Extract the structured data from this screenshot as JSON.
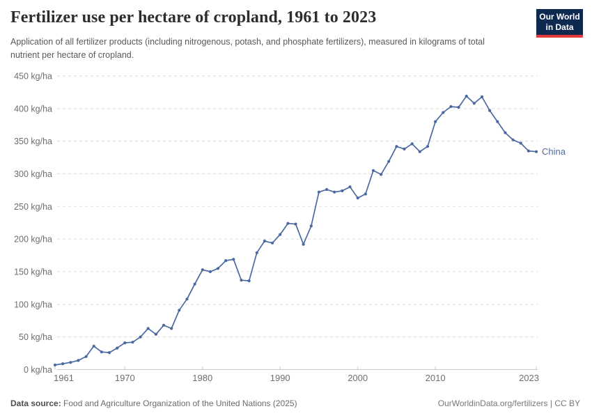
{
  "header": {
    "title": "Fertilizer use per hectare of cropland, 1961 to 2023",
    "subtitle": "Application of all fertilizer products (including nitrogenous, potash, and phosphate fertilizers), measured in kilograms of total nutrient per hectare of cropland.",
    "logo": {
      "line1": "Our World",
      "line2": "in Data"
    }
  },
  "chart_data": {
    "type": "line",
    "title": "Fertilizer use per hectare of cropland, 1961 to 2023",
    "unit": "kg/ha",
    "xlim": [
      1961,
      2023
    ],
    "ylim": [
      0,
      450
    ],
    "grid": "dashed horizontal",
    "legend_position": "end-of-line label",
    "x_ticks": [
      1961,
      1970,
      1980,
      1990,
      2000,
      2010,
      2023
    ],
    "x_tick_labels": [
      "1961",
      "1970",
      "1980",
      "1990",
      "2000",
      "2010",
      "2023"
    ],
    "y_ticks": [
      0,
      50,
      100,
      150,
      200,
      250,
      300,
      350,
      400,
      450
    ],
    "y_tick_labels": [
      "0 kg/ha",
      "50 kg/ha",
      "100 kg/ha",
      "150 kg/ha",
      "200 kg/ha",
      "250 kg/ha",
      "300 kg/ha",
      "350 kg/ha",
      "400 kg/ha",
      "450 kg/ha"
    ],
    "series": [
      {
        "name": "China",
        "color": "#4a69a0",
        "x": [
          1961,
          1962,
          1963,
          1964,
          1965,
          1966,
          1967,
          1968,
          1969,
          1970,
          1971,
          1972,
          1973,
          1974,
          1975,
          1976,
          1977,
          1978,
          1979,
          1980,
          1981,
          1982,
          1983,
          1984,
          1985,
          1986,
          1987,
          1988,
          1989,
          1990,
          1991,
          1992,
          1993,
          1994,
          1995,
          1996,
          1997,
          1998,
          1999,
          2000,
          2001,
          2002,
          2003,
          2004,
          2005,
          2006,
          2007,
          2008,
          2009,
          2010,
          2011,
          2012,
          2013,
          2014,
          2015,
          2016,
          2017,
          2018,
          2019,
          2020,
          2021,
          2022,
          2023
        ],
        "values": [
          7,
          9,
          11,
          14,
          20,
          36,
          27,
          26,
          33,
          41,
          42,
          50,
          63,
          54,
          68,
          63,
          91,
          108,
          131,
          153,
          150,
          155,
          167,
          169,
          137,
          136,
          179,
          197,
          194,
          207,
          224,
          223,
          192,
          220,
          272,
          276,
          272,
          274,
          280,
          263,
          269,
          305,
          299,
          319,
          342,
          338,
          346,
          334,
          342,
          380,
          394,
          403,
          402,
          419,
          408,
          418,
          397,
          380,
          363,
          352,
          347,
          335,
          334
        ]
      }
    ]
  },
  "footer": {
    "source_label": "Data source:",
    "source_value": "Food and Agriculture Organization of the United Nations (2025)",
    "link": "OurWorldinData.org/fertilizers | CC BY"
  },
  "colors": {
    "accent_line": "#4a69a0",
    "logo_navy": "#0d2950",
    "logo_red": "#e2393b",
    "grid": "#dedede",
    "axis": "#c8c8c8",
    "tick_text": "#6e6e6e"
  }
}
